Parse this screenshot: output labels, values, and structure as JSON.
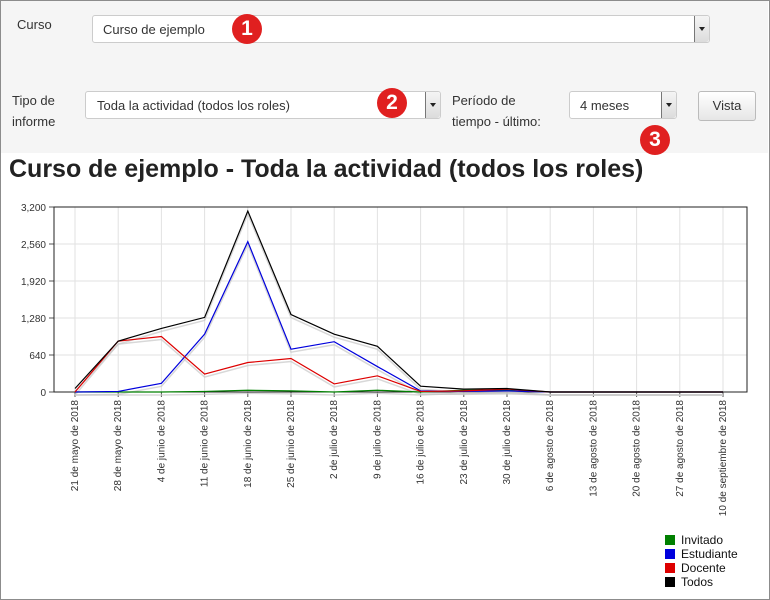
{
  "filters": {
    "course_label": "Curso",
    "course_value": "Curso de ejemplo",
    "report_type_label_line1": "Tipo de",
    "report_type_label_line2": "informe",
    "report_type_value": "Toda la actividad (todos los roles)",
    "period_label_line1": "Período de",
    "period_label_line2": "tiempo - último:",
    "period_value": "4 meses",
    "view_button": "Vista"
  },
  "badges": [
    "1",
    "2",
    "3"
  ],
  "chart_data": {
    "type": "line",
    "title": "Curso de ejemplo - Toda la actividad (todos los roles)",
    "ylim": [
      0,
      3200
    ],
    "yticks": [
      "0",
      "640",
      "1,280",
      "1,920",
      "2,560",
      "3,200"
    ],
    "ytick_values": [
      0,
      640,
      1280,
      1920,
      2560,
      3200
    ],
    "grid": true,
    "legend_position": "bottom-right",
    "categories": [
      "21 de mayo de 2018",
      "28 de mayo de 2018",
      "4 de junio de 2018",
      "11 de junio de 2018",
      "18 de junio de 2018",
      "25 de junio de 2018",
      "2 de julio de 2018",
      "9 de julio de 2018",
      "16 de julio de 2018",
      "23 de julio de 2018",
      "30 de julio de 2018",
      "6 de agosto de 2018",
      "13 de agosto de 2018",
      "20 de agosto de 2018",
      "27 de agosto de 2018",
      "10 de septiembre de 2018"
    ],
    "series": [
      {
        "name": "Invitado",
        "color": "#008000",
        "values": [
          0,
          0,
          0,
          10,
          30,
          20,
          0,
          30,
          0,
          30,
          30,
          0,
          0,
          0,
          0,
          0
        ]
      },
      {
        "name": "Estudiante",
        "color": "#0000dd",
        "values": [
          0,
          10,
          150,
          1000,
          2600,
          740,
          870,
          440,
          20,
          10,
          20,
          0,
          0,
          0,
          0,
          0
        ]
      },
      {
        "name": "Docente",
        "color": "#dd0000",
        "values": [
          0,
          880,
          960,
          310,
          510,
          580,
          140,
          280,
          10,
          20,
          50,
          0,
          0,
          0,
          0,
          0
        ]
      },
      {
        "name": "Todos",
        "color": "#000000",
        "values": [
          60,
          880,
          1100,
          1290,
          3130,
          1340,
          1000,
          790,
          100,
          50,
          60,
          0,
          0,
          0,
          0,
          0
        ]
      }
    ]
  }
}
